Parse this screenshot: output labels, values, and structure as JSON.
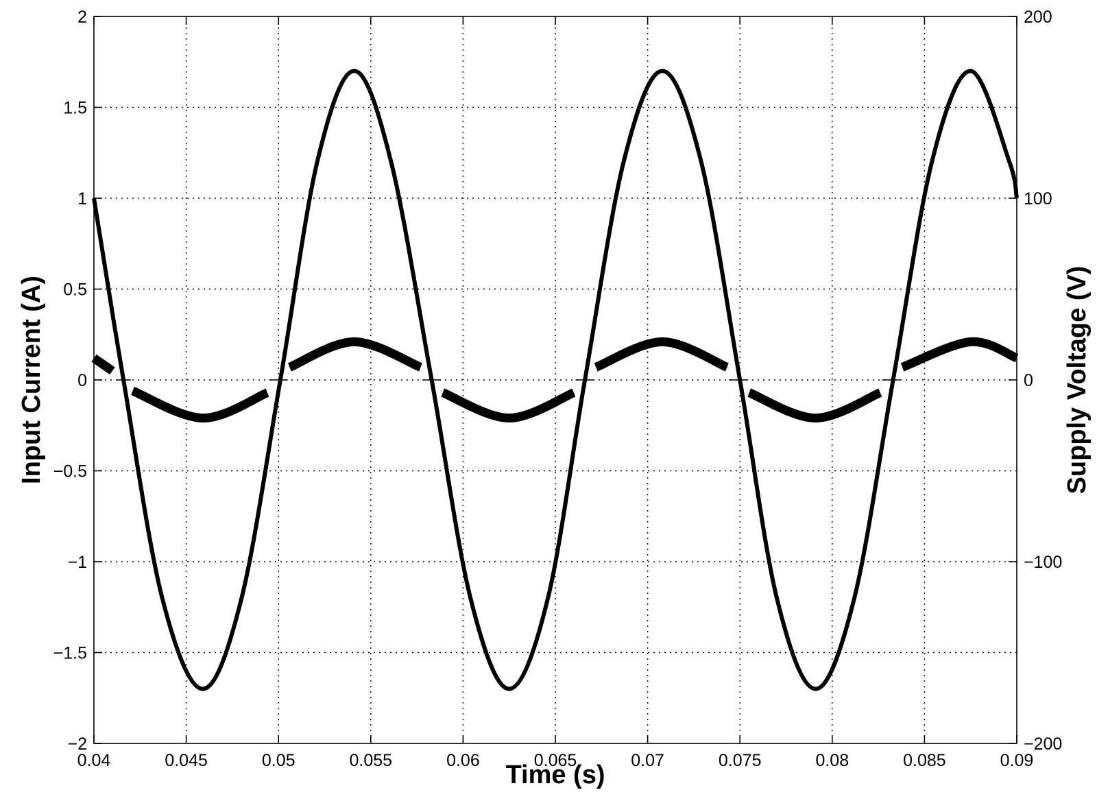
{
  "chart_data": {
    "type": "line",
    "xlabel": "Time (s)",
    "ylabel_left": "Input Current (A)",
    "ylabel_right": "Supply Voltage (V)",
    "xlim": [
      0.04,
      0.09
    ],
    "ylim_left": [
      -2,
      2
    ],
    "ylim_right": [
      -200,
      200
    ],
    "grid": true,
    "x_ticks": [
      "0.04",
      "0.045",
      "0.05",
      "0.055",
      "0.06",
      "0.065",
      "0.07",
      "0.075",
      "0.08",
      "0.085",
      "0.09"
    ],
    "y_ticks_left": [
      "2",
      "1.5",
      "1",
      "0.5",
      "0",
      "−0.5",
      "−1",
      "−1.5",
      "−2"
    ],
    "y_ticks_right": [
      "200",
      "100",
      "0",
      "−100",
      "−200"
    ],
    "series": [
      {
        "axis": "right",
        "style": "solid-thick",
        "x": [
          0.04,
          0.0416,
          0.0437,
          0.0459,
          0.048,
          0.0501,
          0.0521,
          0.0541,
          0.0561,
          0.0583,
          0.0604,
          0.0625,
          0.0646,
          0.0666,
          0.0687,
          0.0708,
          0.0729,
          0.075,
          0.077,
          0.0791,
          0.0812,
          0.0833,
          0.0854,
          0.0875,
          0.0896,
          0.09
        ],
        "values": [
          100,
          0,
          -120,
          -170,
          -120,
          0,
          120,
          170,
          120,
          0,
          -120,
          -170,
          -120,
          0,
          120,
          170,
          120,
          0,
          -120,
          -170,
          -120,
          0,
          120,
          170,
          120,
          100
        ]
      },
      {
        "axis": "left",
        "style": "thick-band",
        "x": [
          0.04,
          0.041,
          0.0412,
          0.042,
          0.0421,
          0.0459,
          0.0494,
          0.0495,
          0.0505,
          0.0506,
          0.0541,
          0.0577,
          0.0578,
          0.0588,
          0.0589,
          0.0625,
          0.066,
          0.0661,
          0.0671,
          0.0672,
          0.0708,
          0.0743,
          0.0744,
          0.0754,
          0.0755,
          0.0791,
          0.0826,
          0.0827,
          0.0837,
          0.0838,
          0.0875,
          0.09
        ],
        "values": [
          0.12,
          0.05,
          0,
          0,
          -0.06,
          -0.21,
          -0.07,
          0,
          0,
          0.07,
          0.21,
          0.07,
          0,
          0,
          -0.07,
          -0.21,
          -0.07,
          0,
          0,
          0.07,
          0.21,
          0.07,
          0,
          0,
          -0.07,
          -0.21,
          -0.07,
          0,
          0,
          0.07,
          0.21,
          0.12
        ]
      }
    ]
  }
}
